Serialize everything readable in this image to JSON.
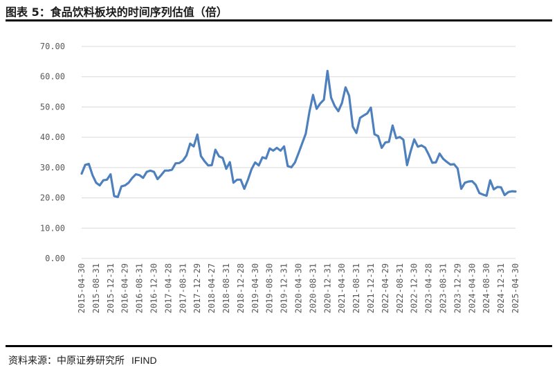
{
  "header": {
    "title": "图表 5：食品饮料板块的时间序列估值（倍）"
  },
  "footer": {
    "source_label": "资料来源：中原证券研究所",
    "source_vendor": "IFIND"
  },
  "chart_data": {
    "type": "line",
    "title": "图表 5：食品饮料板块的时间序列估值（倍）",
    "xlabel": "",
    "ylabel": "",
    "ylim": [
      0,
      70
    ],
    "yticks": [
      "0.00",
      "10.00",
      "20.00",
      "30.00",
      "40.00",
      "50.00",
      "60.00",
      "70.00"
    ],
    "xtick_labels": [
      "2015-04-30",
      "2015-08-31",
      "2015-12-31",
      "2016-04-29",
      "2016-08-31",
      "2016-12-30",
      "2017-04-28",
      "2017-08-31",
      "2017-12-29",
      "2018-04-27",
      "2018-08-31",
      "2018-12-28",
      "2019-04-30",
      "2019-08-30",
      "2019-12-31",
      "2020-04-30",
      "2020-08-31",
      "2020-12-31",
      "2021-04-30",
      "2021-08-31",
      "2021-12-31",
      "2022-04-29",
      "2022-08-31",
      "2022-12-30",
      "2023-04-28",
      "2023-08-31",
      "2023-12-29",
      "2024-04-30",
      "2024-08-30",
      "2024-12-31",
      "2025-04-30"
    ],
    "grid": true,
    "series": [
      {
        "color": "#4e80bd",
        "values": [
          28.0,
          30.9,
          31.2,
          27.5,
          25.0,
          24.1,
          25.8,
          26.0,
          27.8,
          20.6,
          20.3,
          23.8,
          24.1,
          25.0,
          26.6,
          27.8,
          27.5,
          26.6,
          28.6,
          29.0,
          28.6,
          26.2,
          27.5,
          29.0,
          29.0,
          29.3,
          31.4,
          31.5,
          32.3,
          34.0,
          37.9,
          37.0,
          40.9,
          33.8,
          32.1,
          30.7,
          30.8,
          35.9,
          33.7,
          33.2,
          29.6,
          31.8,
          25.0,
          26.0,
          26.0,
          23.0,
          26.0,
          29.5,
          31.7,
          30.7,
          33.4,
          33.0,
          36.3,
          35.6,
          36.5,
          35.6,
          37.0,
          30.5,
          30.1,
          31.7,
          34.8,
          38.0,
          41.2,
          48.4,
          54.0,
          49.4,
          51.2,
          52.4,
          61.9,
          53.1,
          50.3,
          48.6,
          51.3,
          56.5,
          53.7,
          43.5,
          41.4,
          46.4,
          47.2,
          47.9,
          49.8,
          41.0,
          40.4,
          36.5,
          38.3,
          38.5,
          43.9,
          39.7,
          40.1,
          39.2,
          30.8,
          35.4,
          39.3,
          36.9,
          37.3,
          36.6,
          34.3,
          31.6,
          31.7,
          34.6,
          32.9,
          31.9,
          31.0,
          31.1,
          29.7,
          23.0,
          25.0,
          25.4,
          25.5,
          24.3,
          21.6,
          21.1,
          20.7,
          25.8,
          22.8,
          23.6,
          23.5,
          20.9,
          21.9,
          22.2,
          22.1
        ]
      }
    ]
  }
}
